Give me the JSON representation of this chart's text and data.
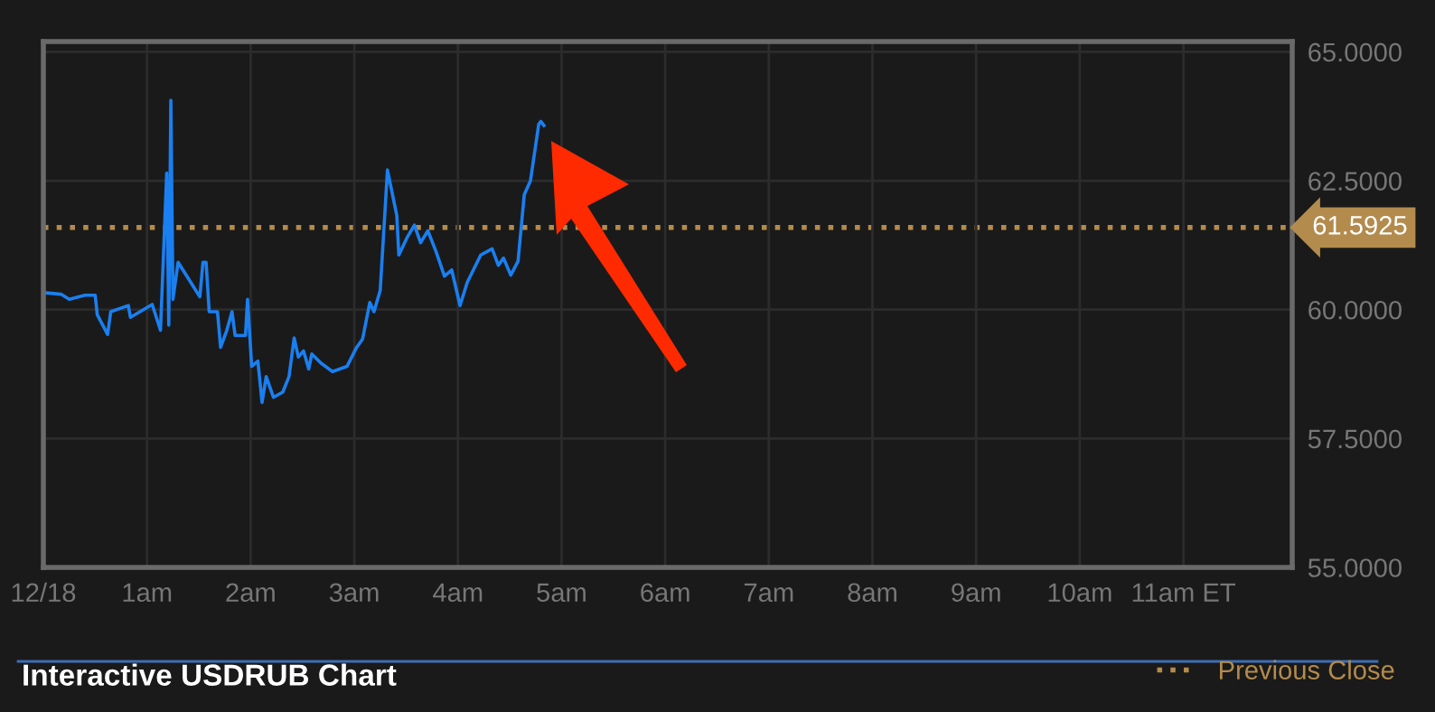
{
  "chart_data": {
    "type": "line",
    "title": "Interactive USDRUB Chart",
    "x": [
      0,
      0.17,
      0.25,
      0.4,
      0.5,
      0.52,
      0.62,
      0.65,
      0.82,
      0.84,
      1.05,
      1.13,
      1.19,
      1.21,
      1.23,
      1.25,
      1.3,
      1.51,
      1.54,
      1.57,
      1.6,
      1.68,
      1.71,
      1.77,
      1.82,
      1.85,
      1.95,
      1.97,
      2.01,
      2.07,
      2.11,
      2.15,
      2.22,
      2.31,
      2.37,
      2.42,
      2.46,
      2.51,
      2.56,
      2.59,
      2.68,
      2.79,
      2.93,
      3.02,
      3.08,
      3.15,
      3.19,
      3.25,
      3.32,
      3.41,
      3.43,
      3.51,
      3.58,
      3.64,
      3.71,
      3.79,
      3.87,
      3.94,
      4.02,
      4.09,
      4.22,
      4.33,
      4.39,
      4.44,
      4.51,
      4.58,
      4.64,
      4.7,
      4.78,
      4.8,
      4.83
    ],
    "series": [
      {
        "color": "#1a7ff0",
        "values": [
          60.33,
          60.3,
          60.2,
          60.28,
          60.28,
          59.9,
          59.52,
          59.96,
          60.08,
          59.85,
          60.1,
          59.6,
          62.65,
          59.7,
          64.06,
          60.2,
          60.92,
          60.25,
          60.92,
          60.92,
          59.96,
          59.96,
          59.27,
          59.6,
          59.96,
          59.5,
          59.5,
          60.2,
          58.9,
          59.0,
          58.2,
          58.7,
          58.3,
          58.4,
          58.7,
          59.45,
          59.08,
          59.2,
          58.85,
          59.14,
          58.96,
          58.8,
          58.9,
          59.26,
          59.43,
          60.14,
          59.96,
          60.37,
          62.71,
          61.83,
          61.06,
          61.4,
          61.64,
          61.3,
          61.53,
          61.12,
          60.65,
          60.77,
          60.08,
          60.53,
          61.06,
          61.18,
          60.86,
          61.0,
          60.67,
          60.94,
          62.23,
          62.5,
          63.6,
          63.65,
          63.57
        ]
      }
    ],
    "xlim": [
      0,
      12.05
    ],
    "ylim": [
      55,
      65.2
    ],
    "xticks": [
      {
        "value": 0,
        "label": "12/18"
      },
      {
        "value": 1,
        "label": "1am"
      },
      {
        "value": 2,
        "label": "2am"
      },
      {
        "value": 3,
        "label": "3am"
      },
      {
        "value": 4,
        "label": "4am"
      },
      {
        "value": 5,
        "label": "5am"
      },
      {
        "value": 6,
        "label": "6am"
      },
      {
        "value": 7,
        "label": "7am"
      },
      {
        "value": 8,
        "label": "8am"
      },
      {
        "value": 9,
        "label": "9am"
      },
      {
        "value": 10,
        "label": "10am"
      },
      {
        "value": 11,
        "label": "11am ET"
      }
    ],
    "yticks": [
      {
        "value": 55,
        "label": "55.0000"
      },
      {
        "value": 57.5,
        "label": "57.5000"
      },
      {
        "value": 60,
        "label": "60.0000"
      },
      {
        "value": 62.5,
        "label": "62.5000"
      },
      {
        "value": 65,
        "label": "65.0000"
      }
    ],
    "ref_lines": [
      {
        "axis": "y",
        "value": 61.5925,
        "label": "Previous Close",
        "color": "#b38b4d",
        "line_style": "dotted"
      }
    ],
    "annotations": [
      "61.5925"
    ],
    "grid": true,
    "legend": "bottom right",
    "marker": "none",
    "line_style": "solid"
  }
}
